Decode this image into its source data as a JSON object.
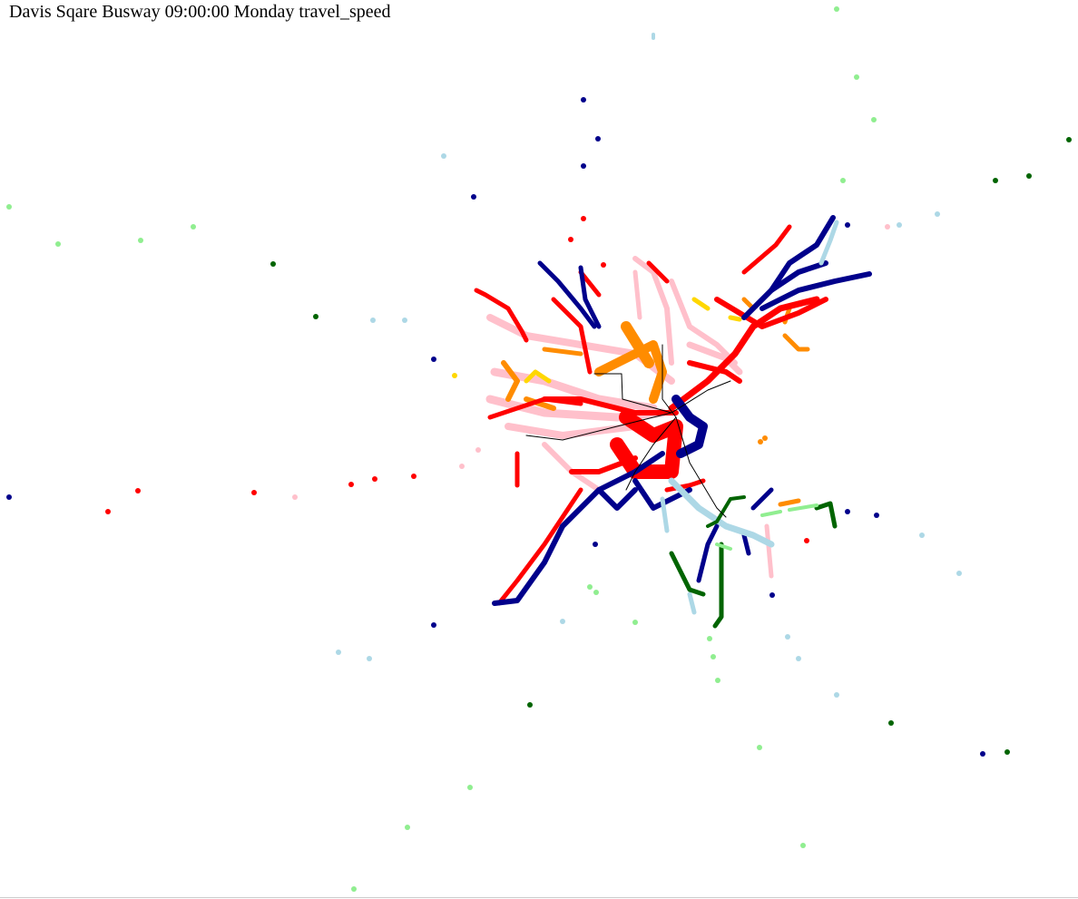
{
  "title": "Davis Sqare Busway 09:00:00 Monday travel_speed",
  "palette": {
    "red": "#ff0000",
    "pink": "#ffc0cb",
    "orange": "#ff8c00",
    "gold": "#ffd700",
    "navy": "#00008b",
    "lightblue": "#add8e6",
    "darkgreen": "#006400",
    "lightgreen": "#90ee90",
    "route_line": "#000000"
  }
}
